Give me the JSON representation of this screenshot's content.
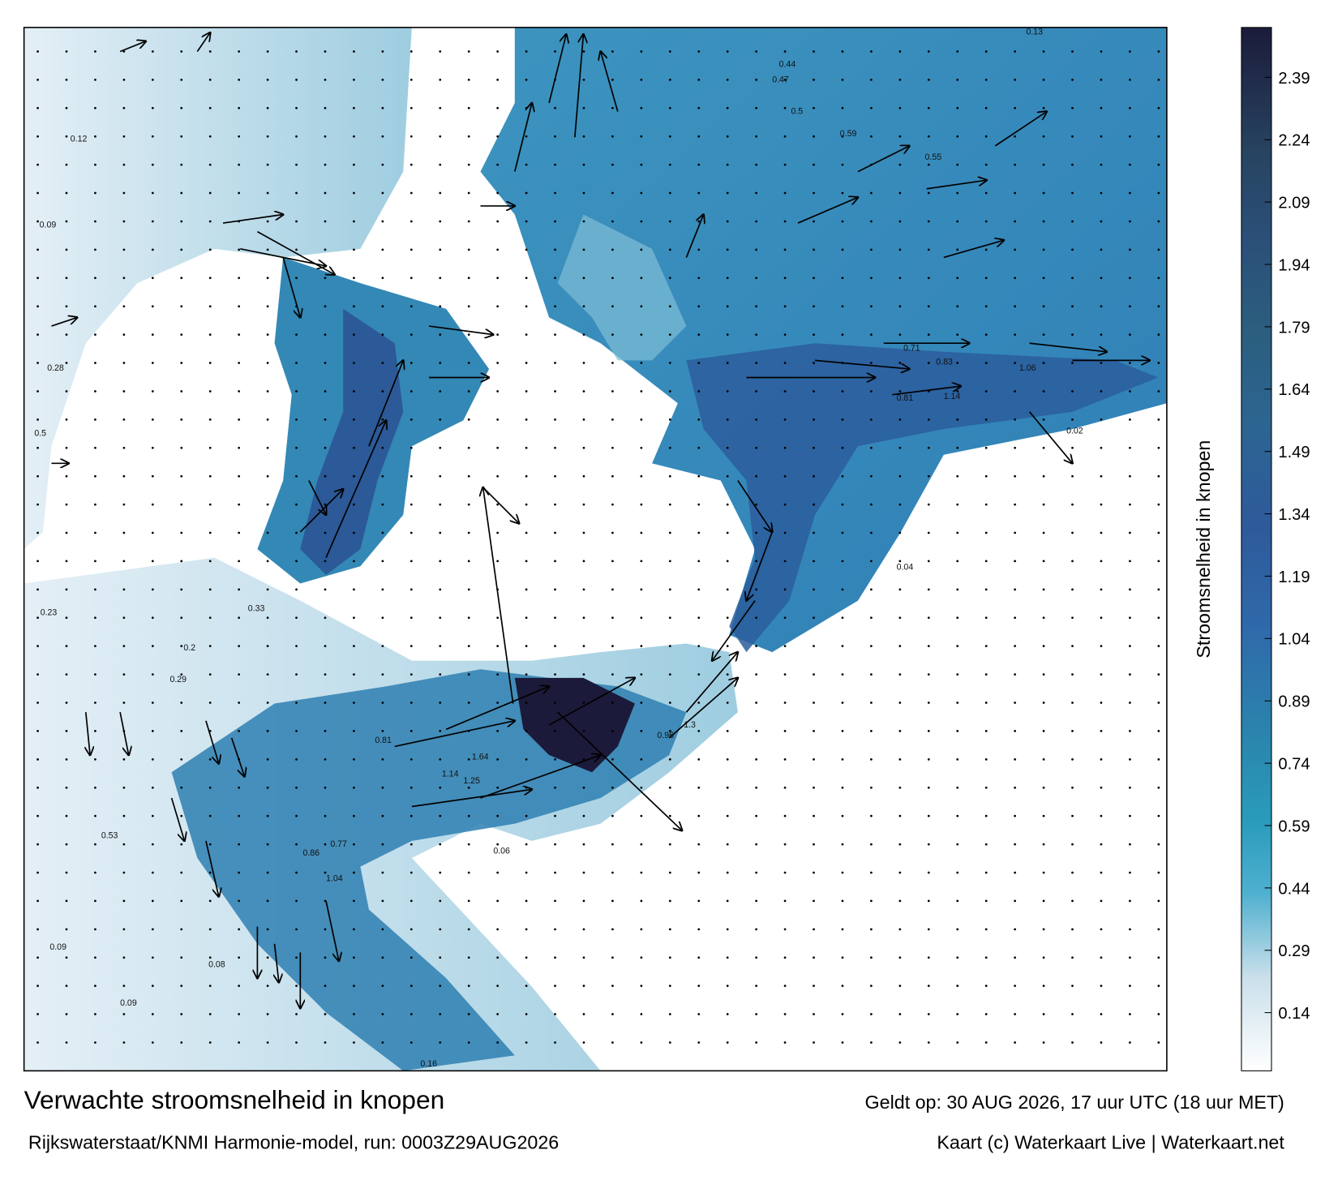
{
  "title": "Verwachte stroomsnelheid in knopen",
  "model_run": "Rijkswaterstaat/KNMI Harmonie-model, run: 0003Z29AUG2026",
  "valid_time": "Geldt op: 30 AUG 2026, 17 uur UTC (18 uur MET)",
  "credit": "Kaart (c) Waterkaart Live | Waterkaart.net",
  "colorbar": {
    "label": "Stroomsnelheid in knopen",
    "range": [
      0,
      2.51
    ],
    "ticks": [
      0.14,
      0.29,
      0.44,
      0.59,
      0.74,
      0.89,
      1.04,
      1.19,
      1.34,
      1.49,
      1.64,
      1.79,
      1.94,
      2.09,
      2.24,
      2.39
    ]
  },
  "map_labels": [
    "1.3",
    "0.96",
    "1.14",
    "1.64",
    "0.81",
    "0.86",
    "1.04",
    "0.77",
    "0.53",
    "0.09",
    "0.08",
    "0.09",
    "0.44",
    "0.47",
    "0.5",
    "0.59",
    "0.55",
    "0.83",
    "1.14",
    "0.81",
    "1.06",
    "0.71",
    "0.28",
    "0.5",
    "0.12",
    "0.09",
    "0.23",
    "0.33",
    "0.2",
    "0.29",
    "1.25",
    "0.13",
    "0.02",
    "0.04",
    "0.06",
    "0.16"
  ]
}
